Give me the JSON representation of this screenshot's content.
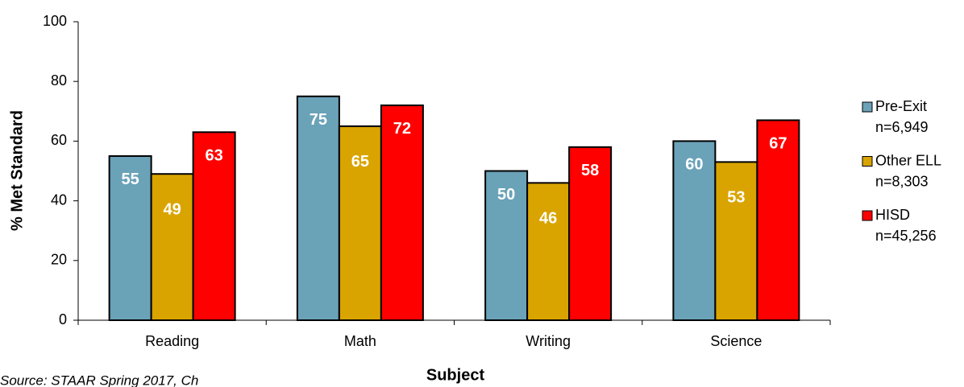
{
  "chart_data": {
    "type": "bar",
    "categories": [
      "Reading",
      "Math",
      "Writing",
      "Science"
    ],
    "series": [
      {
        "name": "Pre-Exit",
        "note": "n=6,949",
        "color": "#6aa2b8",
        "values": [
          55,
          75,
          50,
          60
        ]
      },
      {
        "name": "Other ELL",
        "note": "n=8,303",
        "color": "#d9a400",
        "values": [
          49,
          65,
          46,
          53
        ]
      },
      {
        "name": "HISD",
        "note": "n=45,256",
        "color": "#ff0000",
        "values": [
          63,
          72,
          58,
          67
        ]
      }
    ],
    "ylim": [
      0,
      100
    ],
    "yticks": [
      0,
      20,
      40,
      60,
      80,
      100
    ],
    "y_label": "% Met Standard",
    "x_label": "Subject",
    "legend": "right",
    "footnote": "Source: STAAR Spring 2017, Ch"
  }
}
